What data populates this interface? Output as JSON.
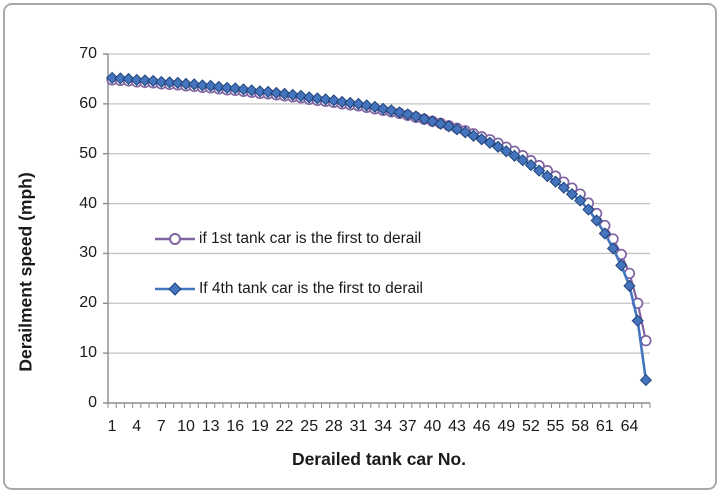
{
  "frame": {
    "background": "#ffffff",
    "border_color": "#a9a9a9"
  },
  "chart_data": {
    "type": "line",
    "title": "",
    "xlabel": "Derailed tank car No.",
    "ylabel": "Derailment speed (mph)",
    "x": [
      1,
      2,
      3,
      4,
      5,
      6,
      7,
      8,
      9,
      10,
      11,
      12,
      13,
      14,
      15,
      16,
      17,
      18,
      19,
      20,
      21,
      22,
      23,
      24,
      25,
      26,
      27,
      28,
      29,
      30,
      31,
      32,
      33,
      34,
      35,
      36,
      37,
      38,
      39,
      40,
      41,
      42,
      43,
      44,
      45,
      46,
      47,
      48,
      49,
      50,
      51,
      52,
      53,
      54,
      55,
      56,
      57,
      58,
      59,
      60,
      61,
      62,
      63,
      64,
      65,
      66
    ],
    "x_tick_labels": [
      1,
      4,
      7,
      10,
      13,
      16,
      19,
      22,
      25,
      28,
      31,
      34,
      37,
      40,
      43,
      46,
      49,
      52,
      55,
      58,
      61,
      64
    ],
    "yticks": [
      0,
      10,
      20,
      30,
      40,
      50,
      60,
      70
    ],
    "ylim": [
      0,
      70
    ],
    "grid": "horizontal",
    "legend_position": "inside-left-middle",
    "colors": {
      "gridline": "#c3c3c3",
      "axis": "#8c8c8c",
      "text": "#1a1a1a"
    },
    "series": [
      {
        "name": "if 1st tank car is the first to derail",
        "marker": "circle-open",
        "color": "#8064A2",
        "marker_fill": "#ffffff",
        "values": [
          64.8,
          64.7,
          64.6,
          64.4,
          64.3,
          64.2,
          64.0,
          63.9,
          63.8,
          63.6,
          63.5,
          63.3,
          63.2,
          63.0,
          62.8,
          62.7,
          62.5,
          62.3,
          62.1,
          62.0,
          61.8,
          61.6,
          61.4,
          61.2,
          60.9,
          60.7,
          60.5,
          60.3,
          60.0,
          59.8,
          59.6,
          59.3,
          59.0,
          58.7,
          58.4,
          58.1,
          57.7,
          57.3,
          56.9,
          56.5,
          56.1,
          55.6,
          55.1,
          54.6,
          54.0,
          53.4,
          52.8,
          52.1,
          51.3,
          50.5,
          49.6,
          48.6,
          47.6,
          46.6,
          45.5,
          44.3,
          43.1,
          41.9,
          40.1,
          38.0,
          35.6,
          32.9,
          29.8,
          26.0,
          20.0,
          12.5
        ]
      },
      {
        "name": "If 4th tank car is the first to derail",
        "marker": "diamond-filled",
        "color": "#4574BE",
        "marker_border": "#1F4479",
        "values": [
          65.2,
          65.1,
          65.0,
          64.8,
          64.7,
          64.6,
          64.4,
          64.3,
          64.2,
          64.0,
          63.9,
          63.7,
          63.6,
          63.4,
          63.2,
          63.1,
          62.9,
          62.7,
          62.5,
          62.4,
          62.2,
          62.0,
          61.8,
          61.6,
          61.3,
          61.1,
          60.9,
          60.7,
          60.4,
          60.2,
          60.0,
          59.7,
          59.4,
          59.0,
          58.7,
          58.3,
          57.9,
          57.5,
          57.0,
          56.5,
          56.0,
          55.5,
          54.9,
          54.3,
          53.6,
          52.9,
          52.2,
          51.4,
          50.5,
          49.6,
          48.7,
          47.7,
          46.6,
          45.5,
          44.4,
          43.2,
          41.9,
          40.6,
          38.8,
          36.6,
          34.0,
          31.0,
          27.6,
          23.5,
          16.5,
          4.6
        ]
      }
    ]
  }
}
